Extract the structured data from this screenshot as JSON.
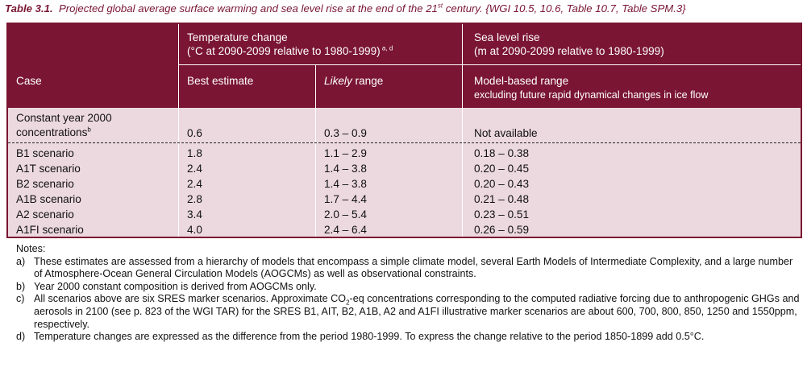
{
  "caption": {
    "label": "Table 3.1.",
    "text_before_sup": "Projected global average surface warming and sea level rise at the end of the 21",
    "sup": "st",
    "text_after_sup": " century. {WGI 10.5, 10.6, Table 10.7, Table SPM.3}"
  },
  "header": {
    "case": "Case",
    "temp_title": "Temperature change",
    "temp_sub": "(°C at 2090-2099 relative to 1980-1999)",
    "temp_sub_sup": " a, d",
    "sea_title": "Sea level rise",
    "sea_sub": "(m at 2090-2099 relative to 1980-1999)",
    "best": "Best estimate",
    "likely": "Likely",
    "range": " range",
    "model_range": "Model-based range",
    "model_range_sub": "excluding future rapid dynamical changes in ice flow"
  },
  "constant": {
    "line1": "Constant year 2000",
    "line2": "concentrations",
    "sup": "b",
    "best": "0.6",
    "likely": "0.3 – 0.9",
    "sea": "Not available"
  },
  "rows": [
    {
      "case": "B1 scenario",
      "best": "1.8",
      "likely": "1.1 – 2.9",
      "sea": "0.18 – 0.38"
    },
    {
      "case": "A1T scenario",
      "best": "2.4",
      "likely": "1.4 – 3.8",
      "sea": "0.20 – 0.45"
    },
    {
      "case": "B2 scenario",
      "best": "2.4",
      "likely": "1.4 – 3.8",
      "sea": "0.20 – 0.43"
    },
    {
      "case": "A1B scenario",
      "best": "2.8",
      "likely": "1.7 – 4.4",
      "sea": "0.21 – 0.48"
    },
    {
      "case": "A2 scenario",
      "best": "3.4",
      "likely": "2.0 – 5.4",
      "sea": "0.23 – 0.51"
    },
    {
      "case": "A1FI scenario",
      "best": "4.0",
      "likely": "2.4 – 6.4",
      "sea": "0.26 – 0.59"
    }
  ],
  "notes": {
    "title": "Notes:",
    "a_label": "a)",
    "a_text": "These estimates are assessed from a hierarchy of models that encompass a simple climate model, several Earth Models of Intermediate Complexity, and a large number of Atmosphere-Ocean General Circulation Models (AOGCMs) as well as observational constraints.",
    "b_label": "b)",
    "b_text": "Year 2000 constant composition is derived from AOGCMs only.",
    "c_label": "c)",
    "c_text_1": "All scenarios above are six SRES marker scenarios. Approximate CO",
    "c_sub": "2",
    "c_text_2": "-eq concentrations corresponding to the computed radiative forcing due to anthropogenic GHGs and aerosols in 2100 (see p. 823 of the WGI TAR) for the SRES B1, AIT, B2, A1B, A2 and A1FI illustrative marker scenarios are about 600, 700, 800, 850, 1250 and 1550ppm, respectively.",
    "d_label": "d)",
    "d_text": "Temperature changes are expressed as the difference from the period 1980-1999. To express the change relative to the period 1850-1899 add 0.5°C."
  },
  "colors": {
    "header_bg": "#7a1533",
    "body_bg": "#ecd9df",
    "caption": "#7a1533"
  }
}
